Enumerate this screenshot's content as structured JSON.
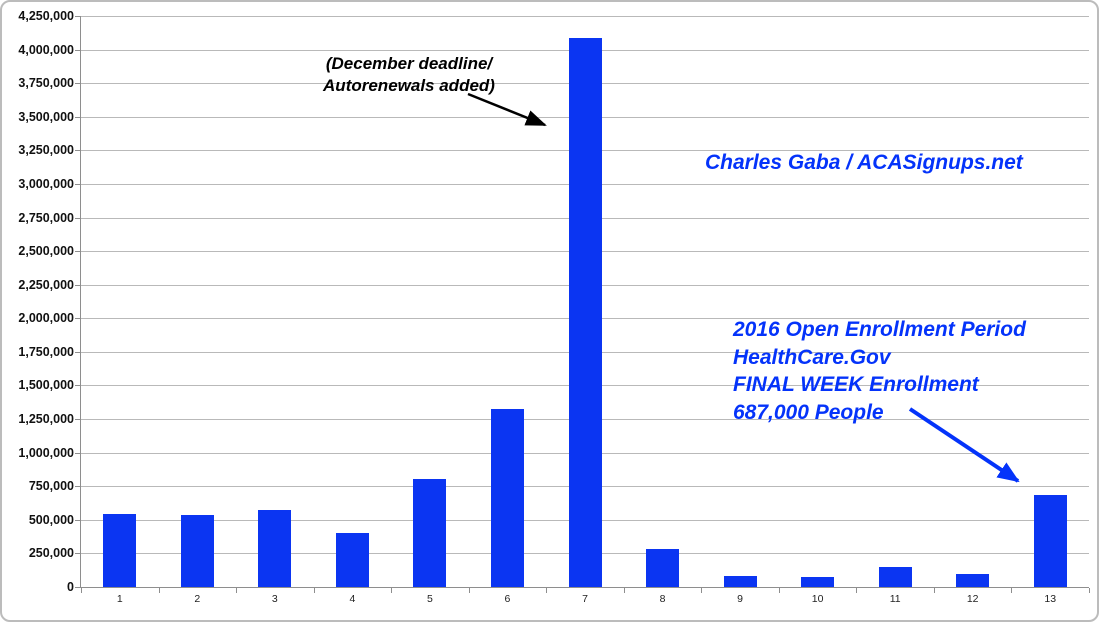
{
  "frame": {
    "border_color": "#bcbcbc",
    "background": "#ffffff"
  },
  "chart_data": {
    "type": "bar",
    "title": "",
    "xlabel": "",
    "ylabel": "",
    "categories": [
      "1",
      "2",
      "3",
      "4",
      "5",
      "6",
      "7",
      "8",
      "9",
      "10",
      "11",
      "12",
      "13"
    ],
    "values": [
      543000,
      535000,
      575000,
      400000,
      805000,
      1325000,
      4090000,
      280000,
      85000,
      75000,
      150000,
      100000,
      687000
    ],
    "ylim": [
      0,
      4250000
    ],
    "ytick_step": 250000,
    "ytick_labels": [
      "0",
      "250,000",
      "500,000",
      "750,000",
      "1,000,000",
      "1,250,000",
      "1,500,000",
      "1,750,000",
      "2,000,000",
      "2,250,000",
      "2,500,000",
      "2,750,000",
      "3,000,000",
      "3,250,000",
      "3,500,000",
      "3,750,000",
      "4,000,000",
      "4,250,000"
    ],
    "grid": true,
    "legend": "none",
    "bar_color": "#0b35f2",
    "gridline_color": "#b9b9b9",
    "axis_color": "#8e8e8e",
    "tick_label_color": "#111111"
  },
  "annotations": {
    "december_deadline": {
      "lines": [
        "(December deadline/",
        "Autorenewals added)"
      ],
      "color": "#000000",
      "arrow_color": "#000000",
      "points_to_category": "7"
    },
    "credit": {
      "text": "Charles Gaba / ACASignups.net",
      "color": "#0433fa"
    },
    "final_week": {
      "lines": [
        "2016 Open Enrollment Period",
        "HealthCare.Gov",
        "FINAL WEEK Enrollment",
        "687,000 People"
      ],
      "color": "#0433fa",
      "arrow_color": "#0433fa",
      "points_to_category": "13"
    }
  }
}
